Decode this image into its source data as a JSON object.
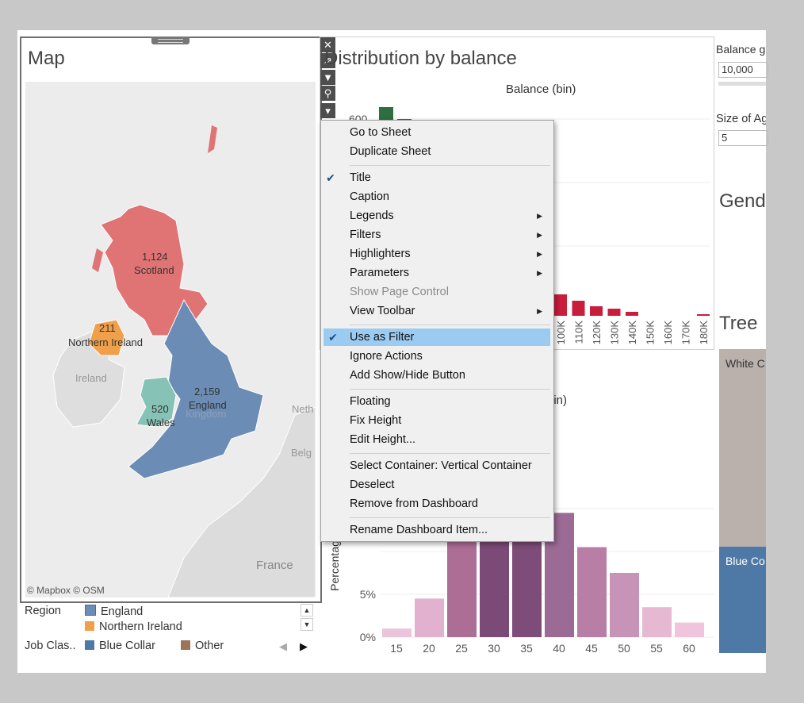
{
  "map": {
    "title": "Map",
    "attribution": "© Mapbox © OSM",
    "regions": [
      {
        "name": "Scotland",
        "value": "1,124",
        "color": "#e07374"
      },
      {
        "name": "Northern Ireland",
        "value": "211",
        "color": "#f0a04a"
      },
      {
        "name": "England",
        "value": "2,159",
        "color": "#6b8db5"
      },
      {
        "name": "Wales",
        "value": "520",
        "color": "#86c2b6"
      }
    ],
    "labels": {
      "ireland": "Ireland",
      "kingdom": "Kingdom",
      "neth": "Neth",
      "belg": "Belg",
      "france": "France"
    }
  },
  "legend": {
    "region_label": "Region",
    "region_items": [
      {
        "name": "England",
        "color": "#6b8db5"
      },
      {
        "name": "Northern Ireland",
        "color": "#f0a04a"
      }
    ],
    "job_label": "Job Clas..",
    "job_items": [
      {
        "name": "Blue Collar",
        "color": "#4e79a7"
      },
      {
        "name": "Other",
        "color": "#9c7458"
      }
    ]
  },
  "balance_chart": {
    "title": "Distribution by balance",
    "header": "Balance (bin)",
    "y_tick": "600"
  },
  "age_chart": {
    "header_fragment": "oin)",
    "y_label_fragment": "Percentag"
  },
  "right_panel": {
    "balance_param_label": "Balance g",
    "balance_param_value": "10,000",
    "size_param_label": "Size of Ag",
    "size_param_value": "5",
    "gender_title": "Gend",
    "tree_title": "Tree",
    "white_label": "White C",
    "blue_label": "Blue Co"
  },
  "toolbar": {
    "close": "✕",
    "popout": "⇗",
    "filter": "▼",
    "pin": "⚲",
    "more": "▾"
  },
  "context_menu": {
    "items": [
      {
        "label": "Go to Sheet"
      },
      {
        "label": "Duplicate Sheet"
      },
      {
        "label": "Title",
        "checked": true
      },
      {
        "label": "Caption"
      },
      {
        "label": "Legends",
        "submenu": true
      },
      {
        "label": "Filters",
        "submenu": true
      },
      {
        "label": "Highlighters",
        "submenu": true
      },
      {
        "label": "Parameters",
        "submenu": true
      },
      {
        "label": "Show Page Control",
        "disabled": true
      },
      {
        "label": "View Toolbar",
        "submenu": true
      },
      {
        "label": "Use as Filter",
        "checked": true
      },
      {
        "label": "Ignore Actions"
      },
      {
        "label": "Add Show/Hide Button"
      },
      {
        "label": "Floating"
      },
      {
        "label": "Fix Height"
      },
      {
        "label": "Edit Height..."
      },
      {
        "label": "Select Container: Vertical Container"
      },
      {
        "label": "Deselect"
      },
      {
        "label": "Remove from Dashboard"
      },
      {
        "label": "Rename Dashboard Item..."
      }
    ]
  },
  "chart_data": [
    {
      "type": "bar",
      "title": "Distribution by balance",
      "xlabel": "Balance (bin)",
      "categories": [
        "100K",
        "110K",
        "120K",
        "130K",
        "140K",
        "150K",
        "160K",
        "170K",
        "180K"
      ],
      "values": [
        27,
        19,
        12,
        9,
        5,
        0,
        0,
        0,
        2
      ],
      "first_bins_visible": [
        640,
        590
      ],
      "y_ticks": [
        600
      ]
    },
    {
      "type": "bar",
      "ylabel": "Percentag",
      "categories": [
        "15",
        "20",
        "25",
        "30",
        "35",
        "40",
        "45",
        "50",
        "55",
        "60"
      ],
      "values": [
        1.0,
        4.5,
        13.5,
        16.5,
        17.5,
        14.5,
        10.5,
        7.5,
        3.5,
        1.7
      ],
      "colors": [
        "#e9c4da",
        "#e2b1cf",
        "#ad6e96",
        "#7c4a76",
        "#7e4c78",
        "#9b6a95",
        "#b87ea6",
        "#c794b7",
        "#e6b8d2",
        "#f0c4dd"
      ],
      "y_ticks": [
        "0%",
        "5%"
      ]
    }
  ]
}
